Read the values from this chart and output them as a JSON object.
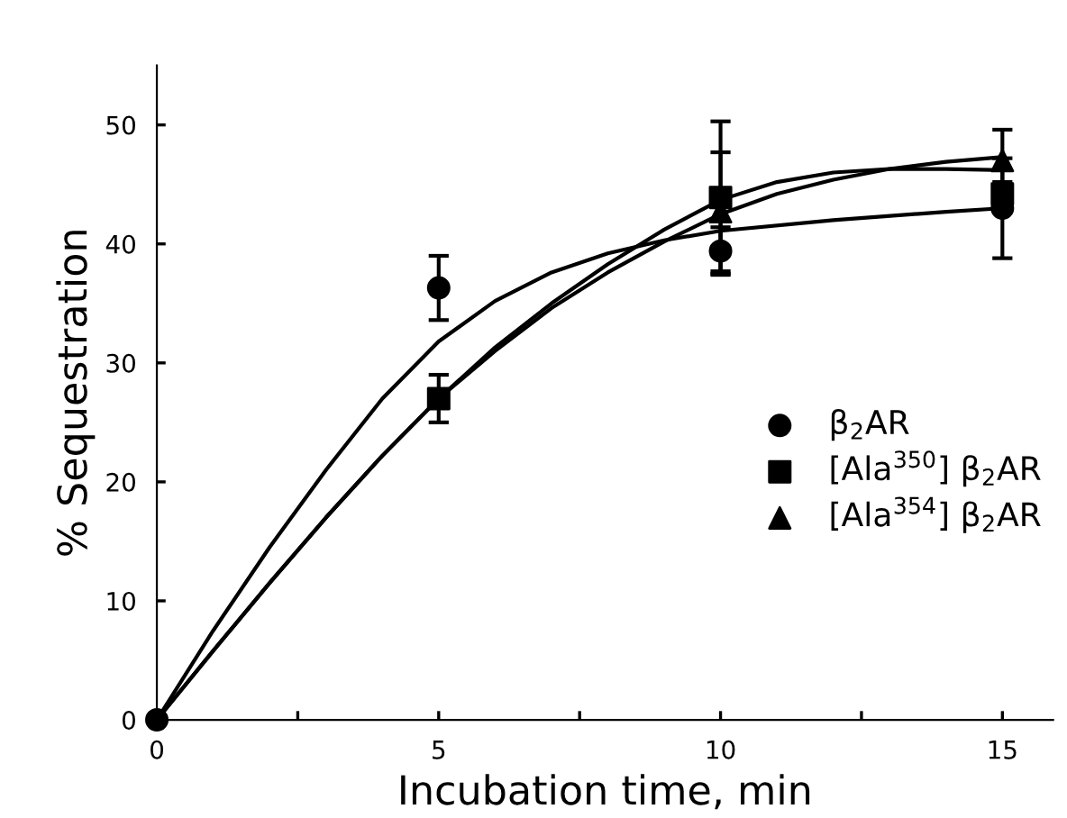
{
  "chart_data": {
    "type": "scatter",
    "xlabel": "Incubation time, min",
    "ylabel": "% Sequestration",
    "xlim": [
      0,
      15.9
    ],
    "ylim": [
      0,
      55
    ],
    "xticks": [
      0,
      {
        "value": 2.5,
        "label": null
      },
      5,
      {
        "value": 7.5,
        "label": null
      },
      10,
      {
        "value": 12.5,
        "label": null
      },
      15
    ],
    "yticks": [
      0,
      10,
      20,
      30,
      40,
      50
    ],
    "grid": false,
    "legend": "right",
    "series": [
      {
        "name": "β$_{2}$AR",
        "color": "#000000",
        "marker": "circle",
        "x": [
          0,
          5,
          10,
          15
        ],
        "values": [
          0,
          36.3,
          39.4,
          43.0
        ],
        "errors": [
          null,
          2.7,
          2.0,
          4.2
        ]
      },
      {
        "name": "[Ala$^{350}$] β$_{2}$AR",
        "color": "#000000",
        "marker": "square",
        "x": [
          5,
          10,
          15
        ],
        "values": [
          27.0,
          43.9,
          44.2
        ],
        "errors": [
          2.0,
          6.4,
          1.0
        ]
      },
      {
        "name": "[Ala$^{354}$] β$_{2}$AR",
        "color": "#000000",
        "marker": "triangle",
        "x": [
          10,
          15
        ],
        "values": [
          42.7,
          47.0
        ],
        "errors": [
          5.0,
          2.6
        ]
      },
      {
        "type": "line",
        "color": "#000000",
        "marker": "none",
        "x": [
          0,
          1,
          2,
          3,
          4,
          5,
          6,
          7,
          8,
          9,
          10,
          12,
          14,
          15
        ],
        "values": [
          0,
          7.5,
          14.5,
          21,
          27,
          31.8,
          35.2,
          37.6,
          39.2,
          40.3,
          41.1,
          42,
          42.7,
          43
        ]
      },
      {
        "type": "line",
        "color": "#000000",
        "marker": "none",
        "x": [
          0,
          1,
          2,
          3,
          4,
          5,
          6,
          7,
          8,
          9,
          10,
          11,
          12,
          13,
          14,
          15
        ],
        "values": [
          0,
          5.8,
          11.5,
          17,
          22.2,
          27,
          31.3,
          35,
          38.3,
          41.2,
          43.7,
          45.2,
          46,
          46.3,
          46.3,
          46.2
        ]
      },
      {
        "type": "line",
        "color": "#000000",
        "marker": "none",
        "x": [
          0,
          1,
          2,
          3,
          4,
          5,
          6,
          7,
          8,
          9,
          10,
          11,
          12,
          13,
          14,
          15
        ],
        "values": [
          0,
          5.8,
          11.5,
          17,
          22.2,
          27,
          31,
          34.6,
          37.6,
          40.2,
          42.5,
          44.2,
          45.4,
          46.3,
          46.9,
          47.3
        ]
      }
    ]
  }
}
